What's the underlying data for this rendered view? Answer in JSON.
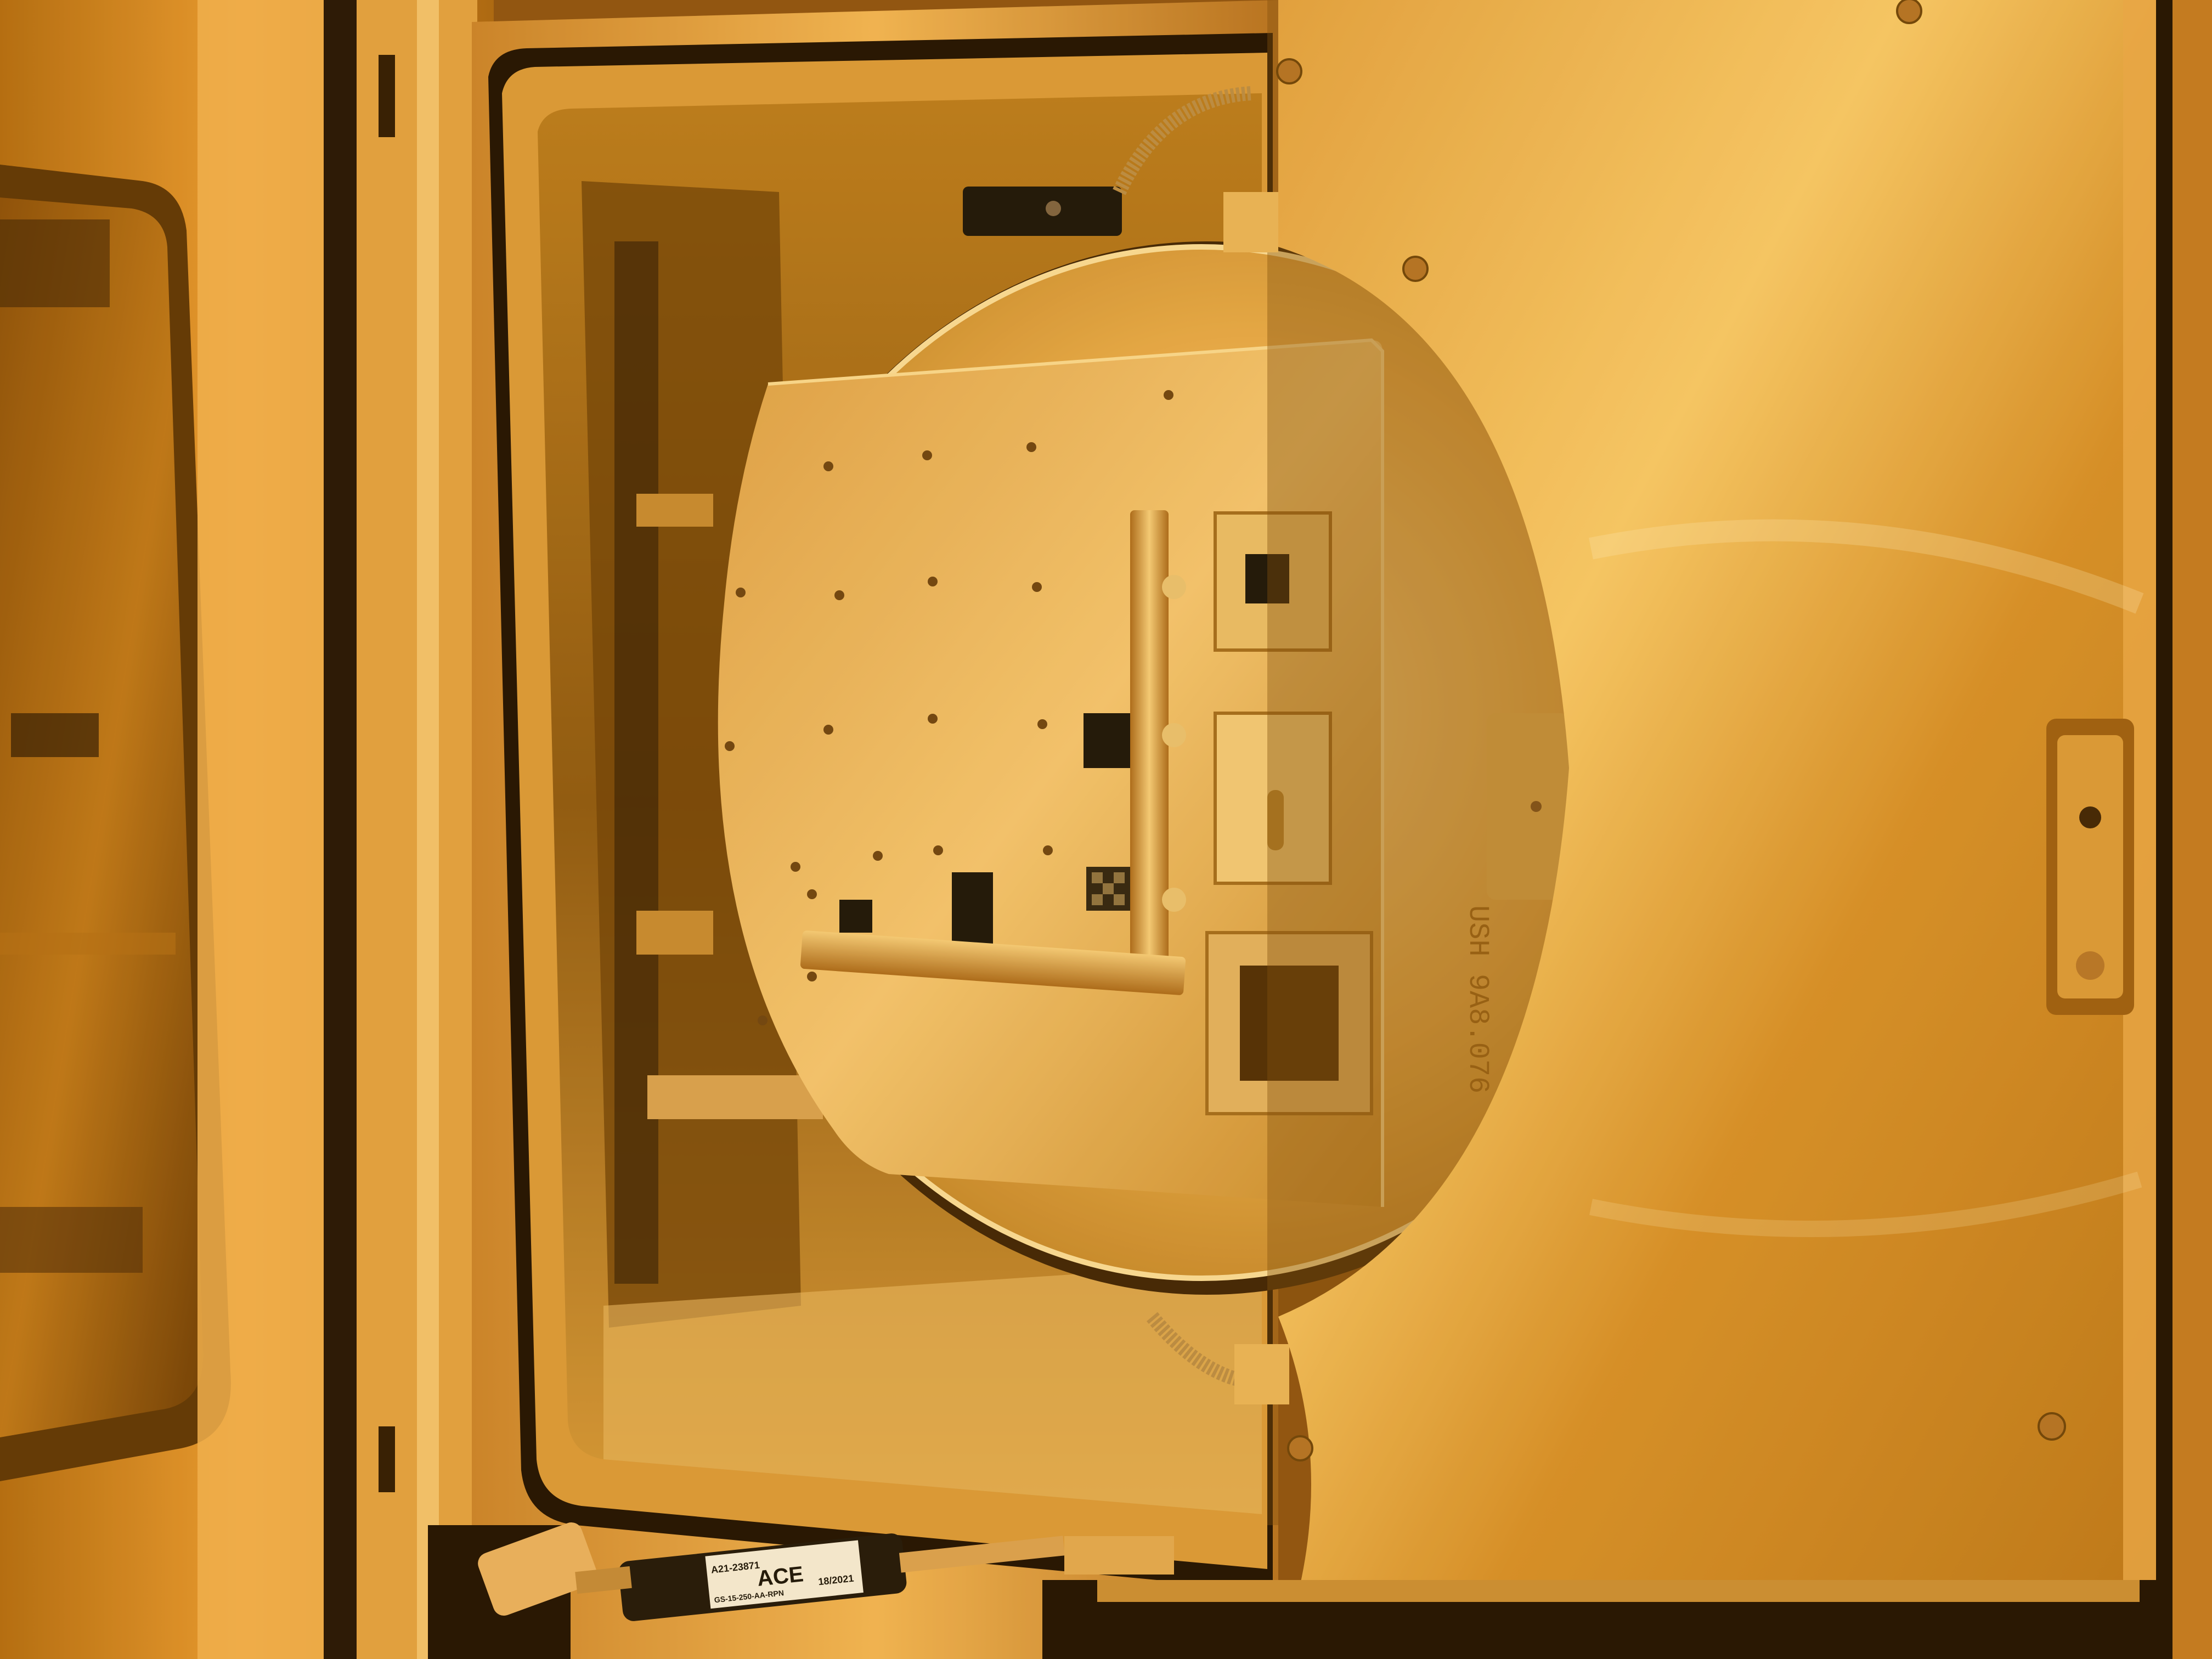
{
  "scene": {
    "description_free": true,
    "wafer_engraving": "USH 9A8.076",
    "damper_brand": "ACE",
    "damper_part_number": "A21-23871",
    "damper_date": "18/2021",
    "damper_spec": "GS-15-250-AA-RPN"
  },
  "colors": {
    "ambient_light": "#f0a020",
    "dark_gap": "#1a0c00",
    "metal_bright": "#f5c060",
    "metal_mid": "#d08a20",
    "metal_dark": "#7a4a08",
    "black_part": "#141008"
  },
  "icons": {
    "screw": "screw-icon",
    "handle": "door-handle-icon",
    "spring": "spring-hose-icon"
  }
}
